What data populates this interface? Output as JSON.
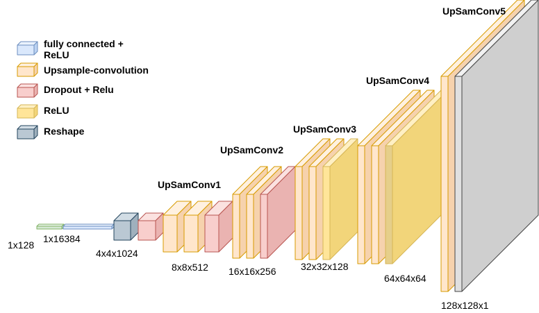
{
  "legend": [
    {
      "label_lines": [
        "fully connected +",
        "ReLU"
      ],
      "front": "#dae8fc",
      "top": "#eaf2fd",
      "side": "#bcd3f2",
      "stroke": "#6c8ebf"
    },
    {
      "label_lines": [
        "Upsample-convolution"
      ],
      "front": "#ffe6cc",
      "top": "#fff1e0",
      "side": "#f6d2ad",
      "stroke": "#d79b00"
    },
    {
      "label_lines": [
        "Dropout + Relu"
      ],
      "front": "#f8cecc",
      "top": "#fbe2e0",
      "side": "#eab3b1",
      "stroke": "#b85450"
    },
    {
      "label_lines": [
        "ReLU"
      ],
      "front": "#ffe599",
      "top": "#fff0c4",
      "side": "#f2d57a",
      "stroke": "#d6b656"
    },
    {
      "label_lines": [
        "Reshape"
      ],
      "front": "#bac8d3",
      "top": "#d2dde5",
      "side": "#9fb0bd",
      "stroke": "#23445d"
    }
  ],
  "dimensions": {
    "input": "1x128",
    "fc": "1x16384",
    "reshape": "4x4x1024",
    "conv1": "8x8x512",
    "conv2": "16x16x256",
    "conv3": "32x32x128",
    "conv4": "64x64x64",
    "conv5": "128x128x1"
  },
  "stages": {
    "conv1": "UpSamConv1",
    "conv2": "UpSamConv2",
    "conv3": "UpSamConv3",
    "conv4": "UpSamConv4",
    "conv5": "UpSamConv5"
  },
  "colors": {
    "input_front": "#d5e8d4",
    "input_top": "#e6f2e5",
    "input_side": "#c0dcbe",
    "input_stroke": "#82b366",
    "output_front": "#e0e0e0",
    "output_top": "#f2f2f2",
    "output_side": "#cfcfcf",
    "output_stroke": "#444444",
    "conv4_relu_front": "#e6cf8a"
  }
}
